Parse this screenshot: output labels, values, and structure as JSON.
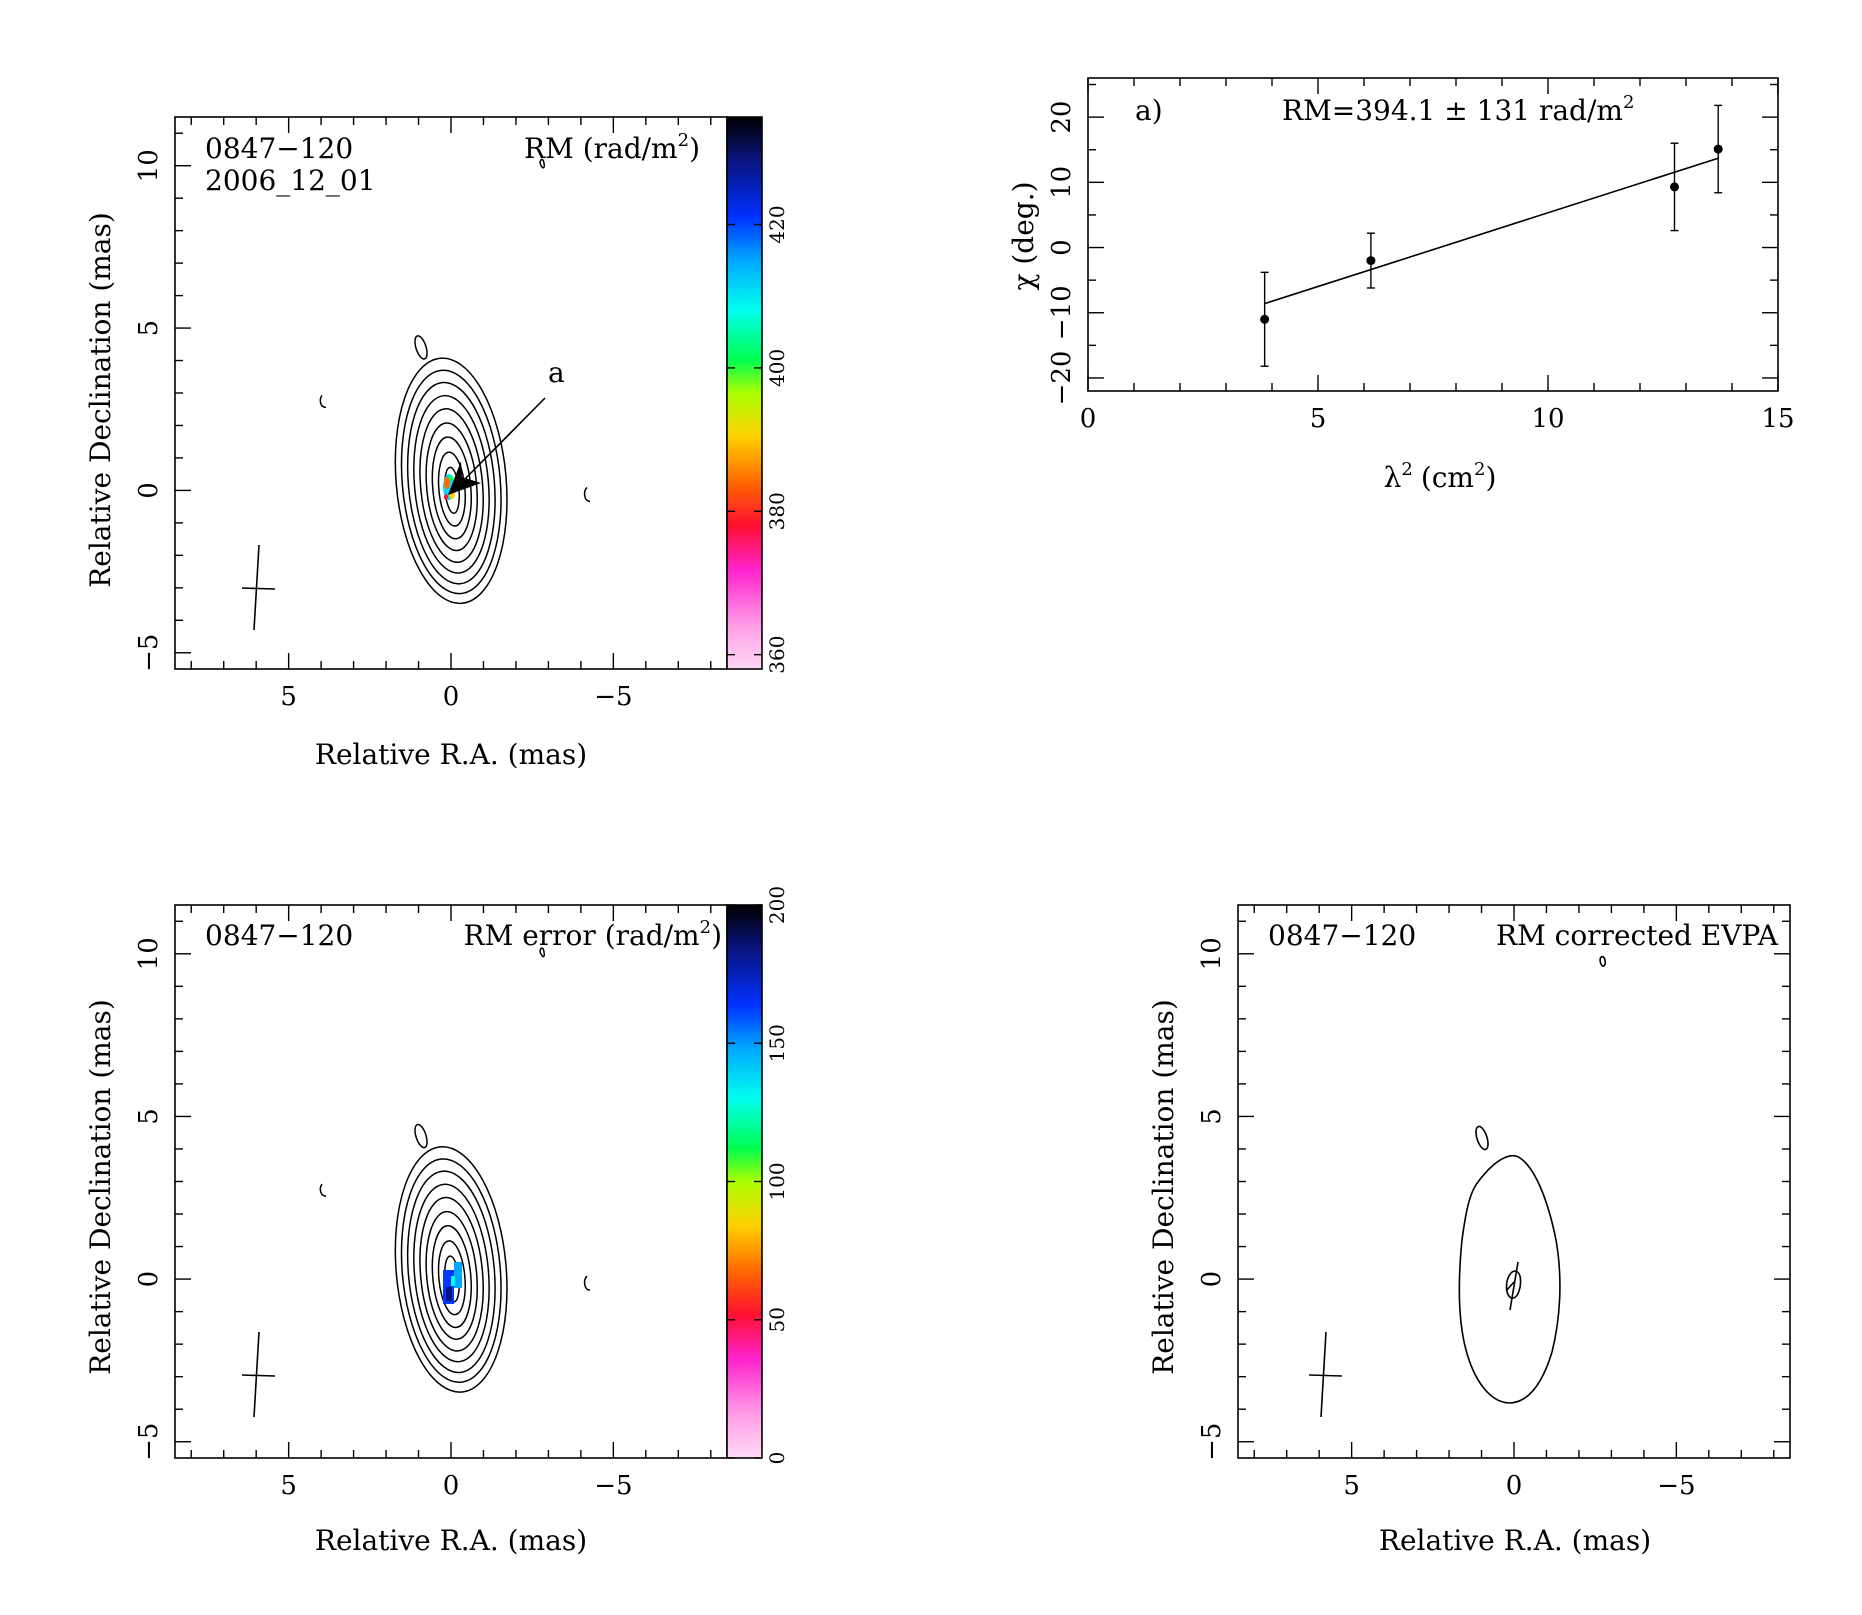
{
  "chart_data": [
    {
      "type": "heatmap",
      "panel": "rm-map",
      "source_name": "0847−120",
      "epoch": "2006_12_01",
      "map_label": "RM",
      "map_unit": "(rad/m",
      "map_unit_exp": "2",
      "map_unit_close": ")",
      "xlabel": "Relative R.A. (mas)",
      "ylabel": "Relative Declination (mas)",
      "xlim": [
        8.5,
        -8.5
      ],
      "ylim": [
        -5.5,
        11.5
      ],
      "x_ticks": [
        "5",
        "0",
        "−5"
      ],
      "y_ticks": [
        "−5",
        "0",
        "5",
        "10"
      ],
      "colorbar": {
        "range": [
          358,
          435
        ],
        "ticks": [
          "360",
          "380",
          "400",
          "420"
        ],
        "tick_values": [
          360,
          380,
          400,
          420
        ]
      },
      "annotation": "a",
      "contours": true,
      "grid": false
    },
    {
      "type": "scatter",
      "panel": "rm-fit",
      "panel_label": "a)",
      "fit_text": "RM=394.1 ± 131 rad/m",
      "fit_text_exp": "2",
      "xlabel": "λ",
      "xlabel_exp": "2",
      "xlabel_unit": "(cm",
      "xlabel_unit_exp": "2",
      "xlabel_close": ")",
      "ylabel": "χ (deg.)",
      "xlim": [
        0,
        15
      ],
      "ylim": [
        -22,
        26
      ],
      "x_ticks": [
        "0",
        "5",
        "10",
        "15"
      ],
      "y_ticks": [
        "−20",
        "−10",
        "0",
        "10",
        "20"
      ],
      "points": [
        {
          "x": 3.84,
          "y": -11,
          "err": 7.2
        },
        {
          "x": 6.15,
          "y": -2,
          "err": 4.2
        },
        {
          "x": 12.75,
          "y": 9.3,
          "err": 6.7
        },
        {
          "x": 13.7,
          "y": 15.1,
          "err": 6.7
        }
      ],
      "fit_line": {
        "x": [
          3.84,
          13.7
        ],
        "y": [
          -8.6,
          13.7
        ]
      },
      "grid": false
    },
    {
      "type": "heatmap",
      "panel": "rm-error-map",
      "source_name": "0847−120",
      "map_label": "RM error",
      "map_unit": "(rad/m",
      "map_unit_exp": "2",
      "map_unit_close": ")",
      "xlabel": "Relative R.A. (mas)",
      "ylabel": "Relative Declination (mas)",
      "xlim": [
        8.5,
        -8.5
      ],
      "ylim": [
        -5.5,
        11.5
      ],
      "x_ticks": [
        "5",
        "0",
        "−5"
      ],
      "y_ticks": [
        "−5",
        "0",
        "5",
        "10"
      ],
      "colorbar": {
        "range": [
          0,
          200
        ],
        "ticks": [
          "0",
          "50",
          "100",
          "150",
          "200"
        ],
        "tick_values": [
          0,
          50,
          100,
          150,
          200
        ]
      },
      "contours": true,
      "grid": false
    },
    {
      "type": "heatmap",
      "panel": "evpa-map",
      "source_name": "0847−120",
      "map_label": "RM corrected EVPA",
      "xlabel": "Relative R.A. (mas)",
      "ylabel": "Relative Declination (mas)",
      "xlim": [
        8.5,
        -8.5
      ],
      "ylim": [
        -5.5,
        11.5
      ],
      "x_ticks": [
        "5",
        "0",
        "−5"
      ],
      "y_ticks": [
        "−5",
        "0",
        "5",
        "10"
      ],
      "contours": true,
      "grid": false
    }
  ]
}
